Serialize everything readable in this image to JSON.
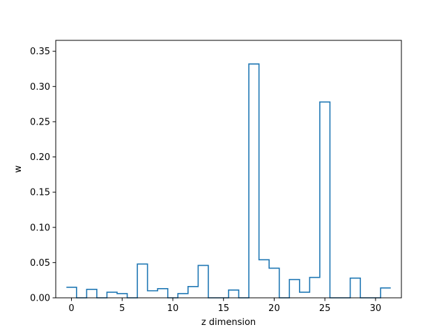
{
  "chart_data": {
    "type": "step",
    "title": "",
    "xlabel": "z dimension",
    "ylabel": "w",
    "xlim": [
      -1.55,
      32.55
    ],
    "ylim": [
      0,
      0.3655
    ],
    "xticks": [
      0,
      5,
      10,
      15,
      20,
      25,
      30
    ],
    "yticks": [
      0.0,
      0.05,
      0.1,
      0.15,
      0.2,
      0.25,
      0.3,
      0.35
    ],
    "grid": false,
    "color": "#1f77b4",
    "series": [
      {
        "x": [
          0,
          1,
          2,
          3,
          4,
          5,
          6,
          7,
          8,
          9,
          10,
          11,
          12,
          13,
          14,
          15,
          16,
          17,
          18,
          19,
          20,
          21,
          22,
          23,
          24,
          25,
          26,
          27,
          28,
          29,
          30,
          31
        ],
        "values": [
          0.015,
          0.0,
          0.012,
          0.0,
          0.008,
          0.006,
          0.0,
          0.048,
          0.01,
          0.013,
          0.0,
          0.006,
          0.016,
          0.046,
          0.0,
          0.0,
          0.011,
          0.0,
          0.332,
          0.054,
          0.042,
          0.0,
          0.026,
          0.008,
          0.029,
          0.278,
          0.0,
          0.0,
          0.028,
          0.0,
          0.0,
          0.014
        ]
      }
    ]
  }
}
